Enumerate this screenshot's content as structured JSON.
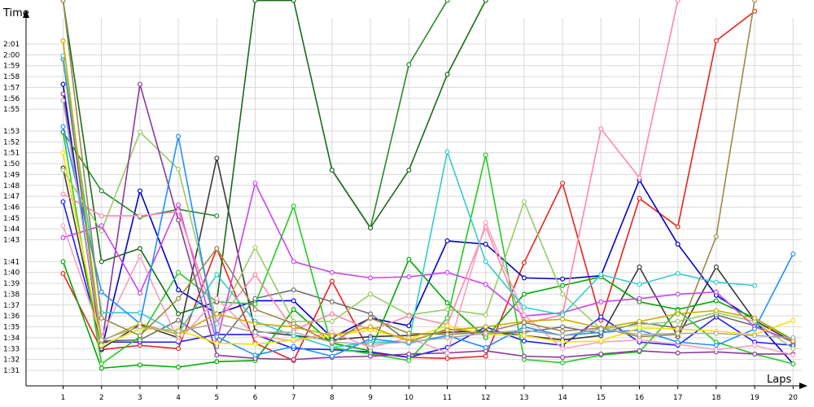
{
  "chart_data": {
    "type": "line",
    "xlabel": "Laps",
    "ylabel": "Time",
    "x": [
      1,
      2,
      3,
      4,
      5,
      6,
      7,
      8,
      9,
      10,
      11,
      12,
      13,
      14,
      15,
      16,
      17,
      18,
      19,
      20
    ],
    "y_tick_labels": [
      "1:31",
      "1:32",
      "1:33",
      "1:34",
      "1:35",
      "1:36",
      "1:37",
      "1:38",
      "1:39",
      "1:40",
      "1:41",
      "1:43",
      "1:44",
      "1:45",
      "1:46",
      "1:47",
      "1:48",
      "1:49",
      "1:50",
      "1:51",
      "1:52",
      "1:53",
      "1:55",
      "1:56",
      "1:57",
      "1:58",
      "1:59",
      "2:00",
      "2:01"
    ],
    "ylim_seconds": [
      90,
      125
    ],
    "grid": true,
    "legend": "none",
    "series": [
      {
        "color": "#e8231c",
        "values": [
          99.9,
          92.9,
          93.3,
          93.0,
          102.2,
          93.5,
          91.9,
          99.2,
          92.6,
          92.2,
          92.1,
          92.3,
          100.9,
          108.2,
          95.6,
          106.8,
          104.2,
          121.3,
          124.0,
          null
        ]
      },
      {
        "color": "#0000cc",
        "values": [
          117.3,
          92.9,
          107.5,
          98.4,
          96.2,
          97.4,
          97.4,
          94.0,
          95.8,
          95.1,
          102.9,
          102.6,
          99.5,
          99.4,
          99.7,
          108.5,
          102.6,
          97.9,
          95.6,
          91.6
        ]
      },
      {
        "color": "#1c1cff",
        "values": [
          106.5,
          93.6,
          93.6,
          93.6,
          94.3,
          94.3,
          93.0,
          92.9,
          92.7,
          92.2,
          93.1,
          95.0,
          93.7,
          93.3,
          95.9,
          93.6,
          93.3,
          95.9,
          93.6,
          93.3
        ]
      },
      {
        "color": "#3a3a3a",
        "values": [
          109.6,
          93.0,
          95.2,
          94.0,
          110.5,
          94.6,
          94.2,
          93.8,
          94.1,
          94.2,
          94.5,
          94.6,
          94.2,
          93.8,
          94.2,
          100.5,
          94.1,
          100.5,
          95.6,
          93.6
        ]
      },
      {
        "color": "#707070",
        "values": [
          119.6,
          93.7,
          93.8,
          95.6,
          93.2,
          97.6,
          98.4,
          97.3,
          96.2,
          93.6,
          94.8,
          94.4,
          94.5,
          95.0,
          94.4,
          95.4,
          94.9,
          96.1,
          95.1,
          93.6
        ]
      },
      {
        "color": "#00aa00",
        "values": [
          101.0,
          91.2,
          91.5,
          91.3,
          91.8,
          91.9,
          96.6,
          93.5,
          92.8,
          101.2,
          97.2,
          94.0,
          98.0,
          98.8,
          99.6,
          97.3,
          96.6,
          97.4,
          95.8,
          93.8
        ]
      },
      {
        "color": "#22cc22",
        "values": [
          112.9,
          91.6,
          94.1,
          100.0,
          97.3,
          97.1,
          106.1,
          93.1,
          92.5,
          91.9,
          95.8,
          110.8,
          92.0,
          91.7,
          92.4,
          92.7,
          96.5,
          93.6,
          92.5,
          91.6
        ]
      },
      {
        "color": "#2a8a2a",
        "values": [
          112.9,
          107.5,
          105.1,
          105.8,
          105.2,
          null,
          null,
          109.4,
          104.1,
          119.1,
          125.0,
          null,
          null,
          null,
          null,
          null,
          null,
          null,
          null,
          null
        ]
      },
      {
        "color": "#1a6a1a",
        "values": [
          125.0,
          101.0,
          102.2,
          96.2,
          97.3,
          125.0,
          125.0,
          109.4,
          104.1,
          109.4,
          118.2,
          125.0,
          null,
          null,
          null,
          null,
          null,
          null,
          null,
          null
        ]
      },
      {
        "color": "#99cc66",
        "values": [
          109.4,
          103.8,
          112.9,
          109.5,
          95.4,
          102.3,
          95.5,
          95.5,
          98.0,
          96.1,
          96.6,
          96.1,
          106.5,
          98.0,
          94.8,
          95.2,
          95.5,
          96.3,
          95.5,
          93.0
        ]
      },
      {
        "color": "#8a3a9a",
        "values": [
          116.4,
          93.2,
          117.3,
          104.8,
          92.4,
          92.1,
          92.0,
          92.2,
          92.3,
          92.5,
          92.6,
          92.8,
          92.3,
          92.2,
          92.5,
          92.8,
          92.6,
          92.7,
          92.5,
          92.5
        ]
      },
      {
        "color": "#cc44ee",
        "values": [
          103.2,
          104.3,
          98.1,
          106.2,
          93.6,
          108.2,
          101.0,
          100.0,
          99.5,
          99.6,
          100.0,
          98.9,
          96.0,
          96.3,
          97.3,
          97.6,
          98.0,
          98.2,
          95.0,
          93.7
        ]
      },
      {
        "color": "#ff88aa",
        "values": [
          107.2,
          105.2,
          105.2,
          105.6,
          95.4,
          99.8,
          94.7,
          96.2,
          94.7,
          96.0,
          95.2,
          104.2,
          95.3,
          96.1,
          113.2,
          108.7,
          125.0,
          null,
          null,
          null
        ]
      },
      {
        "color": "#f7a0c0",
        "values": [
          104.3,
          94.1,
          101.5,
          93.7,
          97.6,
          94.2,
          93.7,
          94.5,
          93.1,
          94.0,
          92.6,
          104.6,
          96.1,
          93.0,
          93.6,
          93.8,
          93.4,
          92.9,
          93.3,
          92.4
        ]
      },
      {
        "color": "#33cccc",
        "values": [
          119.9,
          96.3,
          96.3,
          94.4,
          99.8,
          95.5,
          94.2,
          93.1,
          93.6,
          93.6,
          111.1,
          101.0,
          96.8,
          96.1,
          99.8,
          98.9,
          99.9,
          99.1,
          98.8,
          null
        ]
      },
      {
        "color": "#1e90ff",
        "values": [
          113.4,
          98.2,
          95.3,
          112.5,
          94.1,
          92.4,
          93.2,
          92.3,
          93.9,
          93.5,
          94.2,
          93.1,
          95.0,
          94.2,
          94.5,
          94.7,
          93.6,
          93.3,
          94.8,
          101.7
        ]
      },
      {
        "color": "#ffdd00",
        "values": [
          111.0,
          93.3,
          94.8,
          94.7,
          93.5,
          93.4,
          93.8,
          94.2,
          94.7,
          93.9,
          95.1,
          94.3,
          94.2,
          93.6,
          93.7,
          94.9,
          94.8,
          94.6,
          94.3,
          95.6
        ]
      },
      {
        "color": "#ccaa00",
        "values": [
          121.3,
          93.7,
          95.3,
          94.3,
          96.2,
          95.3,
          95.0,
          94.2,
          95.0,
          93.7,
          94.7,
          95.0,
          95.5,
          95.7,
          94.9,
          95.5,
          96.2,
          96.5,
          95.8,
          93.7
        ]
      },
      {
        "color": "#9a8a4a",
        "values": [
          125.0,
          95.8,
          94.2,
          97.6,
          102.2,
          96.6,
          95.3,
          93.5,
          95.8,
          94.4,
          94.3,
          94.5,
          95.4,
          94.6,
          94.9,
          94.1,
          94.3,
          103.3,
          125.0,
          null
        ]
      },
      {
        "color": "#aaaaaa",
        "values": [
          115.8,
          93.8,
          95.0,
          94.6,
          95.3,
          94.5,
          94.5,
          93.6,
          93.4,
          93.6,
          94.0,
          94.4,
          94.7,
          94.2,
          94.8,
          94.3,
          94.4,
          94.4,
          94.2,
          94.0
        ]
      }
    ]
  }
}
